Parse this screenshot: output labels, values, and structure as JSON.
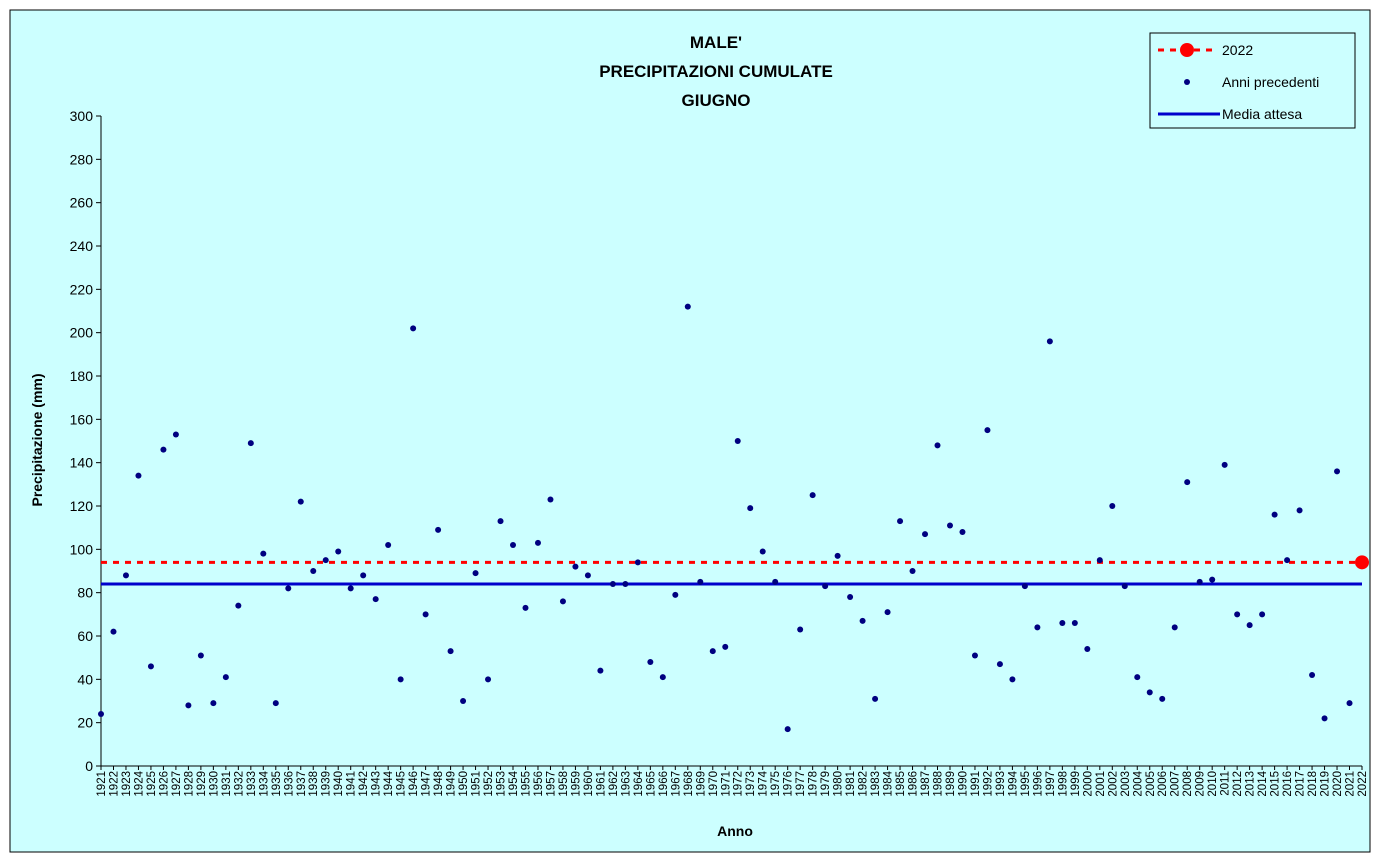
{
  "chart_data": {
    "type": "scatter",
    "title": [
      "MALE'",
      "PRECIPITAZIONI CUMULATE",
      "GIUGNO"
    ],
    "x_label": "Anno",
    "y_label": "Precipitazione (mm)",
    "categories": [
      "1921",
      "1922",
      "1923",
      "1924",
      "1925",
      "1926",
      "1927",
      "1928",
      "1929",
      "1930",
      "1931",
      "1932",
      "1933",
      "1934",
      "1935",
      "1936",
      "1937",
      "1938",
      "1939",
      "1940",
      "1941",
      "1942",
      "1943",
      "1944",
      "1945",
      "1946",
      "1947",
      "1948",
      "1949",
      "1950",
      "1951",
      "1952",
      "1953",
      "1954",
      "1955",
      "1956",
      "1957",
      "1958",
      "1959",
      "1960",
      "1961",
      "1962",
      "1963",
      "1964",
      "1965",
      "1966",
      "1967",
      "1968",
      "1969",
      "1970",
      "1971",
      "1972",
      "1973",
      "1974",
      "1975",
      "1976",
      "1977",
      "1978",
      "1979",
      "1980",
      "1981",
      "1982",
      "1983",
      "1984",
      "1985",
      "1986",
      "1987",
      "1988",
      "1989",
      "1990",
      "1991",
      "1992",
      "1993",
      "1994",
      "1995",
      "1996",
      "1997",
      "1998",
      "1999",
      "2000",
      "2001",
      "2002",
      "2003",
      "2004",
      "2005",
      "2006",
      "2007",
      "2008",
      "2009",
      "2010",
      "2011",
      "2012",
      "2013",
      "2014",
      "2015",
      "2016",
      "2017",
      "2018",
      "2019",
      "2020",
      "2021",
      "2022"
    ],
    "series": [
      {
        "name": "2022",
        "color": "#ff0000",
        "value": 94
      },
      {
        "name": "Anni precedenti",
        "color": "#000080",
        "values": [
          24,
          62,
          88,
          134,
          46,
          146,
          153,
          28,
          51,
          29,
          41,
          74,
          149,
          98,
          29,
          82,
          122,
          90,
          95,
          99,
          82,
          88,
          77,
          102,
          40,
          202,
          70,
          109,
          53,
          30,
          89,
          40,
          113,
          102,
          73,
          103,
          123,
          76,
          92,
          88,
          44,
          84,
          84,
          94,
          48,
          41,
          79,
          212,
          85,
          53,
          55,
          150,
          119,
          99,
          85,
          17,
          63,
          125,
          83,
          97,
          78,
          67,
          31,
          71,
          113,
          90,
          107,
          148,
          111,
          108,
          51,
          155,
          47,
          40,
          83,
          64,
          196,
          66,
          66,
          54,
          95,
          120,
          83,
          41,
          34,
          31,
          64,
          131,
          85,
          86,
          139,
          70,
          65,
          70,
          116,
          95,
          118,
          42,
          22,
          136,
          29,
          null
        ]
      },
      {
        "name": "Media attesa",
        "color": "#0000cc",
        "value": 84
      }
    ],
    "ylim": [
      0,
      300
    ],
    "yticks": [
      0,
      20,
      40,
      60,
      80,
      100,
      120,
      140,
      160,
      180,
      200,
      220,
      240,
      260,
      280,
      300
    ],
    "legend": "top-right"
  }
}
